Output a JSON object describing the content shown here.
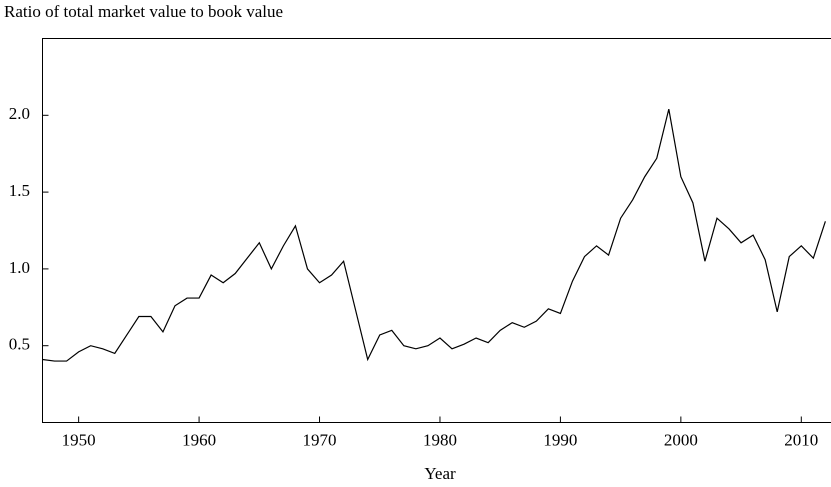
{
  "chart_data": {
    "type": "line",
    "title": "Ratio of total market value to book value",
    "x_label": "Year",
    "x": [
      1947,
      1948,
      1949,
      1950,
      1951,
      1952,
      1953,
      1954,
      1955,
      1956,
      1957,
      1958,
      1959,
      1960,
      1961,
      1962,
      1963,
      1964,
      1965,
      1966,
      1967,
      1968,
      1969,
      1970,
      1971,
      1972,
      1973,
      1974,
      1975,
      1976,
      1977,
      1978,
      1979,
      1980,
      1981,
      1982,
      1983,
      1984,
      1985,
      1986,
      1987,
      1988,
      1989,
      1990,
      1991,
      1992,
      1993,
      1994,
      1995,
      1996,
      1997,
      1998,
      1999,
      2000,
      2001,
      2002,
      2003,
      2004,
      2005,
      2006,
      2007,
      2008,
      2009,
      2010,
      2011,
      2012
    ],
    "series": [
      {
        "color": "#000000",
        "values": [
          0.41,
          0.4,
          0.4,
          0.46,
          0.5,
          0.48,
          0.45,
          0.57,
          0.69,
          0.69,
          0.59,
          0.76,
          0.81,
          0.81,
          0.96,
          0.91,
          0.97,
          1.07,
          1.17,
          1.0,
          1.15,
          1.28,
          1.0,
          0.91,
          0.96,
          1.05,
          0.73,
          0.41,
          0.57,
          0.6,
          0.5,
          0.48,
          0.5,
          0.55,
          0.48,
          0.51,
          0.55,
          0.52,
          0.6,
          0.65,
          0.62,
          0.66,
          0.74,
          0.71,
          0.92,
          1.08,
          1.15,
          1.09,
          1.33,
          1.45,
          1.6,
          1.72,
          2.04,
          1.6,
          1.43,
          1.05,
          1.33,
          1.26,
          1.17,
          1.22,
          1.06,
          0.72,
          1.08,
          1.15,
          1.07,
          1.31
        ]
      }
    ],
    "xlim": [
      1947,
      2012.3
    ],
    "ylim": [
      0,
      2.5
    ],
    "xticks": [
      1950,
      1960,
      1970,
      1980,
      1990,
      2000,
      2010
    ],
    "yticks": [
      {
        "value": 0.5,
        "label": "0.5"
      },
      {
        "value": 1,
        "label": "1.0"
      },
      {
        "value": 1.5,
        "label": "1.5"
      },
      {
        "value": 2,
        "label": "2.0"
      }
    ]
  }
}
